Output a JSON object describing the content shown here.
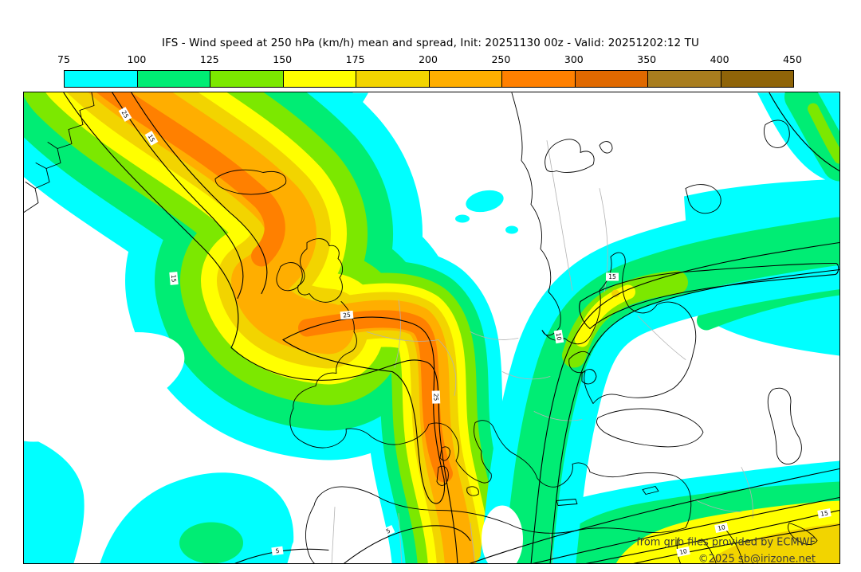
{
  "header": {
    "title": "IFS - Wind speed at 250 hPa (km/h) mean and spread, Init: 20251130 00z - Valid: 20251202:12 TU"
  },
  "colorbar": {
    "tick_labels": [
      "75",
      "100",
      "125",
      "150",
      "175",
      "200",
      "250",
      "300",
      "350",
      "400",
      "450"
    ],
    "segment_colors": [
      "#00FFFF",
      "#00ED74",
      "#7CE800",
      "#FFFF00",
      "#F2D400",
      "#FFAE00",
      "#FF8000",
      "#E06900",
      "#A87D1E",
      "#8F6408"
    ]
  },
  "map": {
    "wind_palette": {
      "75": "#00FFFF",
      "100": "#00ED74",
      "125": "#7CE800",
      "150": "#FFFF00",
      "175": "#F2D400",
      "200": "#FFAE00",
      "250": "#FF8000"
    },
    "contour_labels": [
      "25",
      "15",
      "15",
      "25",
      "25",
      "15",
      "10",
      "10",
      "10",
      "15",
      "5",
      "5"
    ],
    "attribution_line1": "from grib files provided by ECMWF",
    "attribution_line2": "©2025 sb@irizone.net"
  },
  "chart_data": {
    "type": "heatmap",
    "title": "IFS - Wind speed at 250 hPa (km/h) mean and spread",
    "init": "20251130 00z",
    "valid": "20251202:12 TU",
    "units": "km/h",
    "colorbar_levels": [
      75,
      100,
      125,
      150,
      175,
      200,
      250,
      300,
      350,
      400,
      450
    ],
    "colorbar_colors": [
      "#00FFFF",
      "#00ED74",
      "#7CE800",
      "#FFFF00",
      "#F2D400",
      "#FFAE00",
      "#FF8000",
      "#E06900",
      "#A87D1E",
      "#8F6408"
    ],
    "spread_contour_levels_shown": [
      5,
      10,
      15,
      25
    ],
    "region": "North Atlantic / Europe",
    "data_source": "ECMWF grib files"
  }
}
